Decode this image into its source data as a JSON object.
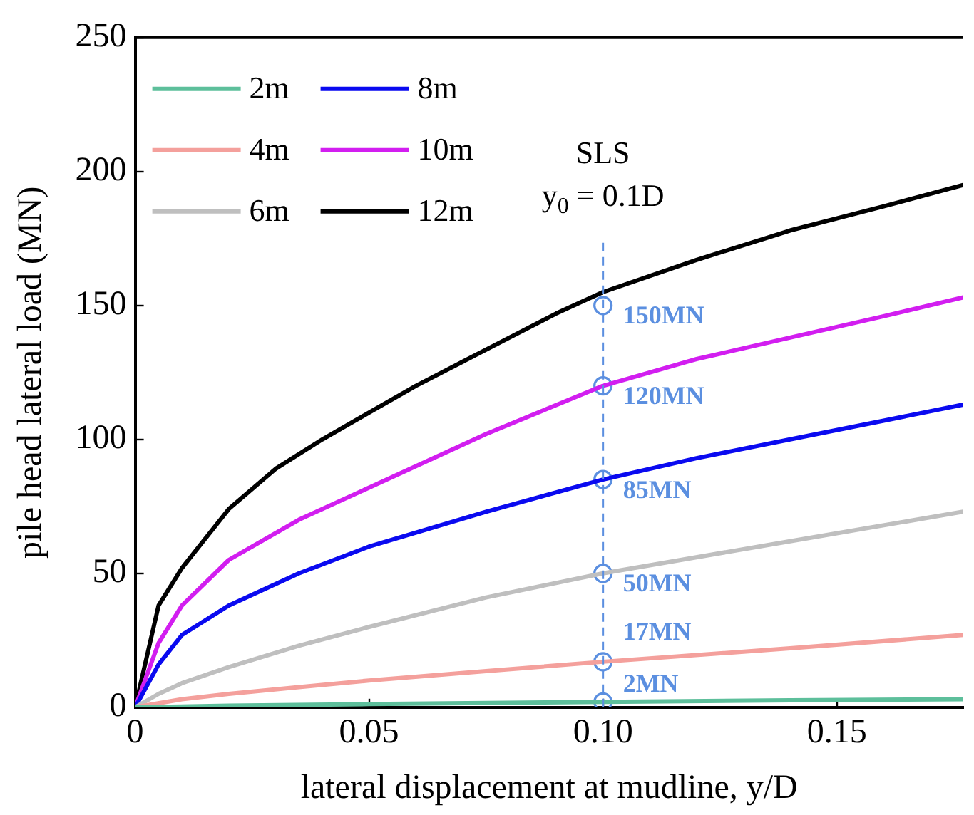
{
  "chart_data": {
    "type": "line",
    "xlabel": "lateral displacement at mudline, y/D",
    "ylabel": "pile head lateral load (MN)",
    "xlim": [
      0,
      0.177
    ],
    "xticks": [
      0,
      0.05,
      {
        "value": 0.1,
        "label": "0.10"
      },
      0.15
    ],
    "ylim": [
      0,
      250
    ],
    "yticks": [
      0,
      50,
      100,
      150,
      200,
      250
    ],
    "grid": false,
    "legend": "top left",
    "marker": "none",
    "line_style": "solid",
    "series": [
      {
        "name": "2m",
        "color": "#5dbf9b",
        "x": [
          0,
          0.02,
          0.05,
          0.1,
          0.14,
          0.177
        ],
        "values": [
          0,
          0.6,
          1.2,
          2,
          2.6,
          3
        ]
      },
      {
        "name": "4m",
        "color": "#f4a09c",
        "x": [
          0,
          0.01,
          0.02,
          0.035,
          0.05,
          0.075,
          0.1,
          0.14,
          0.177
        ],
        "values": [
          0,
          3,
          5,
          7.5,
          10,
          13.5,
          17,
          22,
          27
        ]
      },
      {
        "name": "6m",
        "color": "#bfbfbf",
        "x": [
          0,
          0.005,
          0.01,
          0.02,
          0.035,
          0.05,
          0.075,
          0.1,
          0.14,
          0.177
        ],
        "values": [
          0,
          5,
          9,
          15,
          23,
          30,
          41,
          50,
          62,
          73
        ]
      },
      {
        "name": "8m",
        "color": "#0a0af0",
        "x": [
          0,
          0.005,
          0.01,
          0.02,
          0.035,
          0.05,
          0.075,
          0.1,
          0.12,
          0.14,
          0.16,
          0.177
        ],
        "values": [
          0,
          16,
          27,
          38,
          50,
          60,
          73,
          85,
          93,
          100,
          107,
          113
        ]
      },
      {
        "name": "10m",
        "color": "#d21ef0",
        "x": [
          0,
          0.005,
          0.01,
          0.02,
          0.035,
          0.05,
          0.075,
          0.1,
          0.12,
          0.14,
          0.16,
          0.177
        ],
        "values": [
          0,
          24,
          38,
          55,
          70,
          82,
          102,
          120,
          130,
          138,
          146,
          153
        ]
      },
      {
        "name": "12m",
        "color": "#000000",
        "x": [
          0,
          0.005,
          0.01,
          0.02,
          0.03,
          0.04,
          0.05,
          0.06,
          0.07,
          0.08,
          0.09,
          0.1,
          0.12,
          0.14,
          0.16,
          0.177
        ],
        "values": [
          0,
          38,
          52,
          74,
          89,
          100,
          110,
          120,
          129,
          138,
          147,
          155,
          167,
          178,
          187,
          195
        ]
      },
      {
        "type": "scatter",
        "marker": "circle",
        "color": "#5b8fe0",
        "x": [
          0.1,
          0.1,
          0.1,
          0.1,
          0.1,
          0.1
        ],
        "values": [
          2,
          17,
          50,
          85,
          120,
          150
        ],
        "value_labels": [
          "2MN",
          "17MN",
          "50MN",
          "85MN",
          "120MN",
          "150MN"
        ]
      }
    ],
    "ref_lines": [
      {
        "axis": "x",
        "value": 0.1,
        "label": "SLS\ny$_{0}$ = 0.1D",
        "color": "#5b8fe0",
        "line_style": "dashed"
      }
    ]
  }
}
